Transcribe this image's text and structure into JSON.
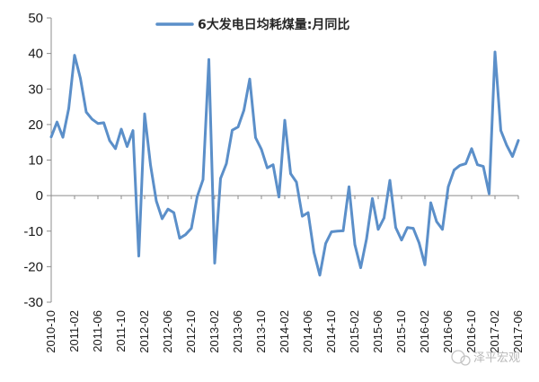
{
  "chart_data": {
    "type": "line",
    "series": [
      {
        "name": "6大发电日均耗煤量:月同比",
        "color": "#5b8fc9",
        "values": [
          16.5,
          20.7,
          16.4,
          24.5,
          39.5,
          33.0,
          23.5,
          21.5,
          20.3,
          20.5,
          15.5,
          13.2,
          18.7,
          13.8,
          18.3,
          -17.0,
          23.0,
          8.7,
          -1.5,
          -6.5,
          -3.8,
          -4.8,
          -12.0,
          -11.0,
          -9.2,
          -0.3,
          4.5,
          38.3,
          -19.0,
          4.8,
          9.0,
          18.4,
          19.3,
          24.0,
          32.8,
          16.3,
          13.0,
          7.8,
          8.7,
          -0.4,
          21.2,
          6.2,
          3.8,
          -5.8,
          -4.8,
          -16.0,
          -22.4,
          -13.5,
          -10.2,
          -10.0,
          -9.9,
          2.5,
          -13.8,
          -20.3,
          -12.2,
          -0.8,
          -9.5,
          -6.3,
          4.3,
          -9.0,
          -12.5,
          -9.0,
          -9.2,
          -13.3,
          -19.5,
          -2.0,
          -7.3,
          -9.5,
          2.5,
          7.2,
          8.5,
          9.0,
          13.2,
          8.7,
          8.2,
          0.5,
          40.4,
          18.3,
          14.2,
          11.0,
          15.5
        ]
      }
    ],
    "x_start": "2010-10",
    "x_end": "2017-06",
    "x_tick_labels": [
      "2010-10",
      "2011-02",
      "2011-06",
      "2011-10",
      "2012-02",
      "2012-06",
      "2012-10",
      "2013-02",
      "2013-06",
      "2013-10",
      "2014-02",
      "2014-06",
      "2014-10",
      "2015-02",
      "2015-06",
      "2015-10",
      "2016-02",
      "2016-06",
      "2016-10",
      "2017-02",
      "2017-06"
    ],
    "y_ticks": [
      50,
      40,
      30,
      20,
      10,
      0,
      -10,
      -20,
      -30
    ],
    "ylim": [
      -30,
      50
    ],
    "grid": false,
    "legend_position": "top-center",
    "title": "",
    "xlabel": "",
    "ylabel": ""
  },
  "watermark": {
    "text": "泽平宏观"
  }
}
